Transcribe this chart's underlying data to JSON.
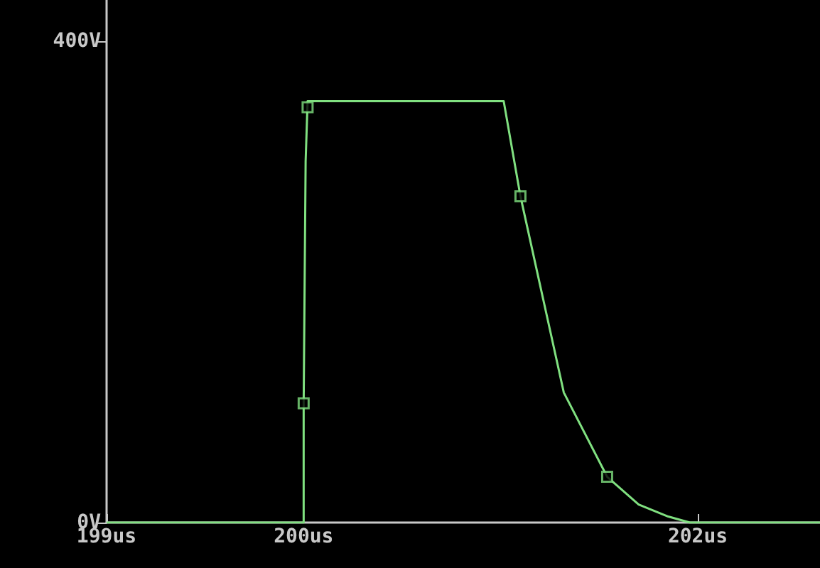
{
  "chart_data": {
    "type": "line",
    "series": [
      {
        "color": "#80e080",
        "marker": "none",
        "x": [
          199,
          200,
          200.0,
          200.0,
          200.01,
          200.02,
          201.015,
          201.1,
          201.32,
          201.54,
          201.7,
          201.85,
          201.96,
          202.62
        ],
        "values": [
          0,
          0,
          60,
          99,
          300,
          350,
          350,
          271,
          108,
          38,
          15,
          5,
          0,
          0
        ]
      },
      {
        "type": "scatter",
        "color": "#80e080",
        "marker": "square",
        "x": [
          200.0,
          200.02,
          201.1,
          201.54
        ],
        "values": [
          99,
          345,
          271,
          38
        ]
      }
    ],
    "xlim": [
      199,
      202.62
    ],
    "xticks": [
      {
        "value": 199,
        "label": "199us"
      },
      {
        "value": 200,
        "label": "200us"
      },
      {
        "value": 202,
        "label": "202us"
      }
    ],
    "ylim": [
      0,
      434
    ],
    "yticks": [
      {
        "value": 0,
        "label": "0V"
      },
      {
        "value": 400,
        "label": "400V"
      }
    ],
    "grid": false
  }
}
